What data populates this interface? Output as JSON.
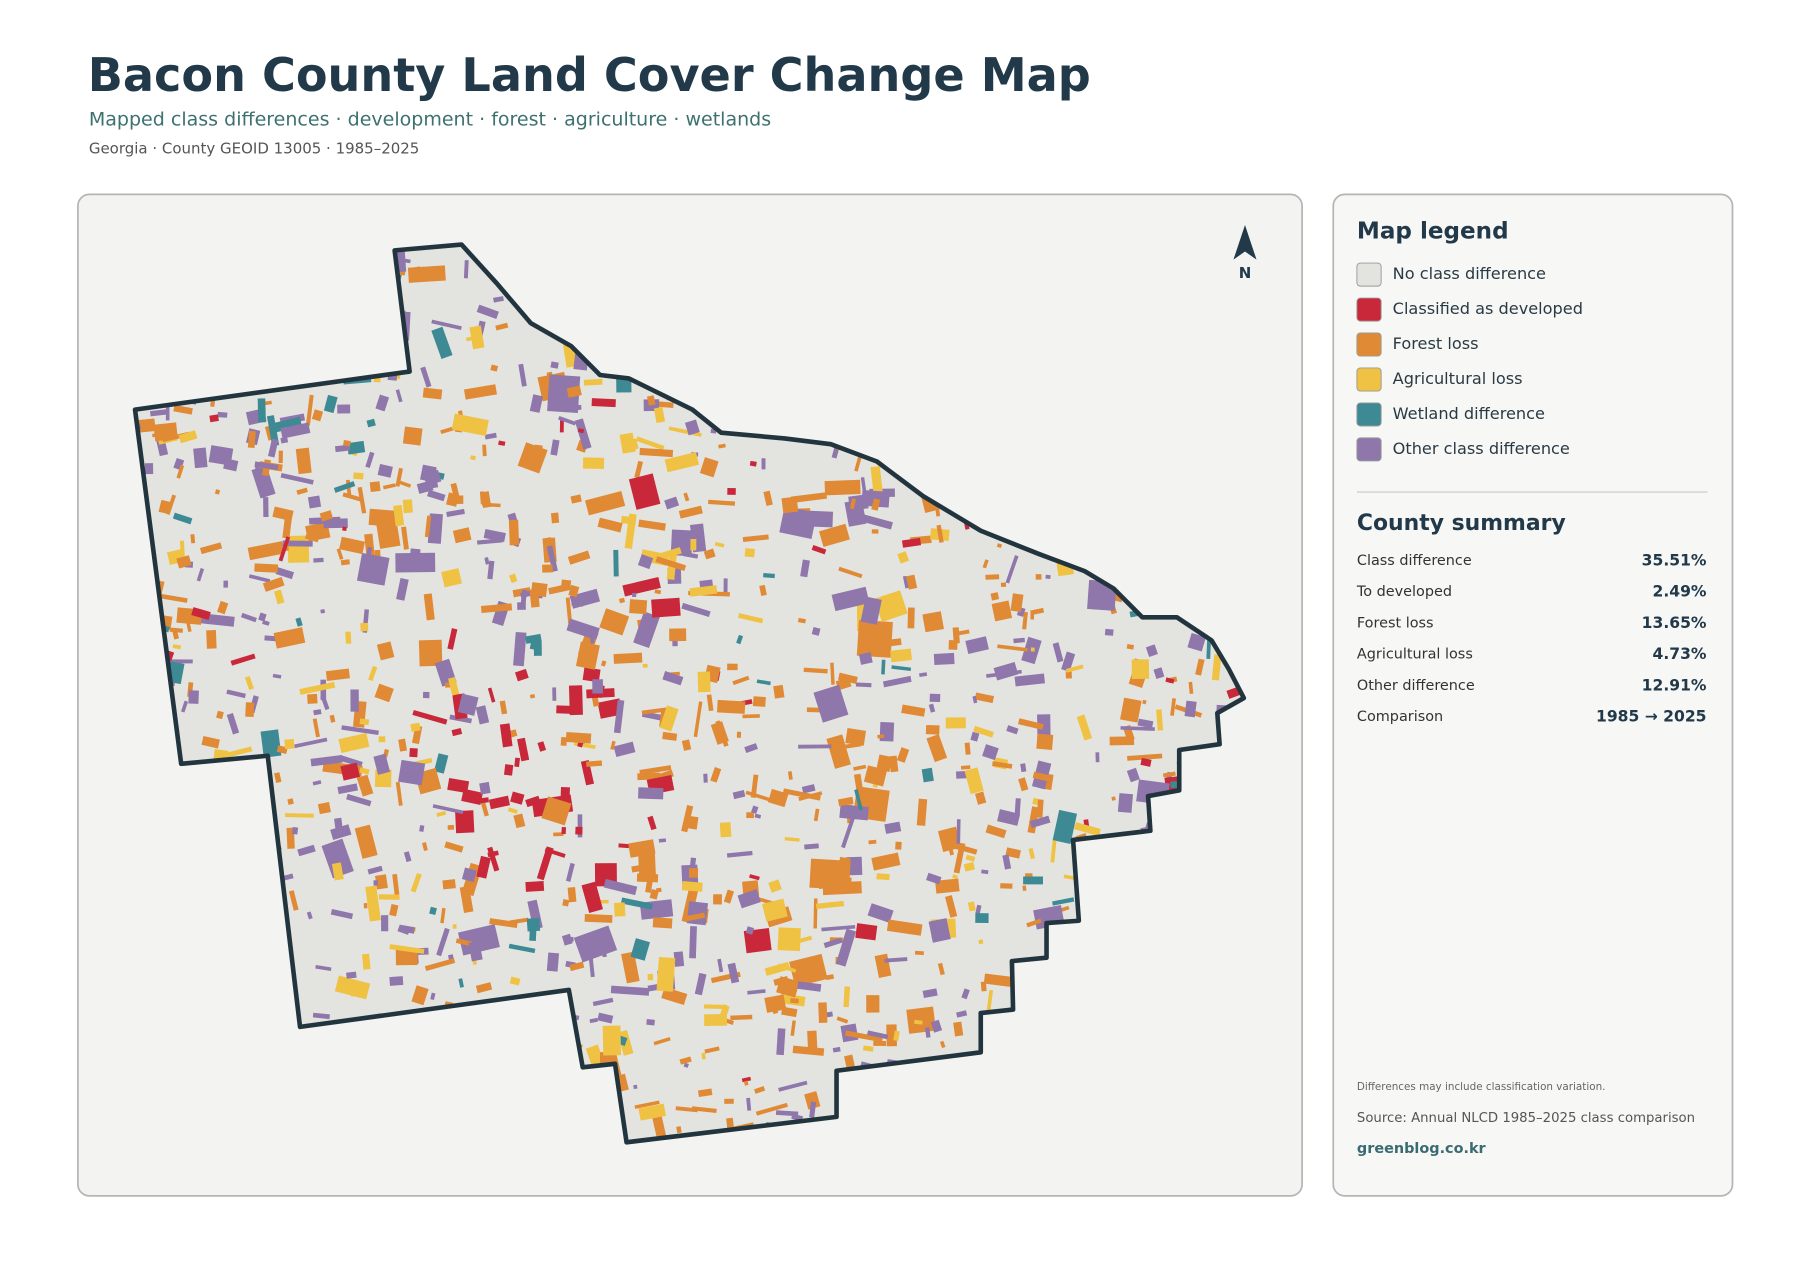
{
  "header": {
    "title": "Bacon County Land Cover Change Map",
    "subtitle": "Mapped class differences · development · forest · agriculture · wetlands",
    "meta": "Georgia · County GEOID 13005 · 1985–2025"
  },
  "map": {
    "north_label": "N"
  },
  "legend": {
    "title": "Map legend",
    "items": [
      {
        "label": "No class difference",
        "color": "#e3e3df"
      },
      {
        "label": "Classified as developed",
        "color": "#c8283a"
      },
      {
        "label": "Forest loss",
        "color": "#e08a35"
      },
      {
        "label": "Agricultural loss",
        "color": "#f0c244"
      },
      {
        "label": "Wetland difference",
        "color": "#3d8a94"
      },
      {
        "label": "Other class difference",
        "color": "#8f76ab"
      }
    ]
  },
  "summary": {
    "title": "County summary",
    "rows": [
      {
        "label": "Class difference",
        "value": "35.51%"
      },
      {
        "label": "To developed",
        "value": "2.49%"
      },
      {
        "label": "Forest loss",
        "value": "13.65%"
      },
      {
        "label": "Agricultural loss",
        "value": "4.73%"
      },
      {
        "label": "Other difference",
        "value": "12.91%"
      },
      {
        "label": "Comparison",
        "value": "1985 → 2025"
      }
    ]
  },
  "footer": {
    "note": "Differences may include classification variation.",
    "source": "Source: Annual NLCD 1985–2025 class comparison",
    "site": "greenblog.co.kr"
  }
}
